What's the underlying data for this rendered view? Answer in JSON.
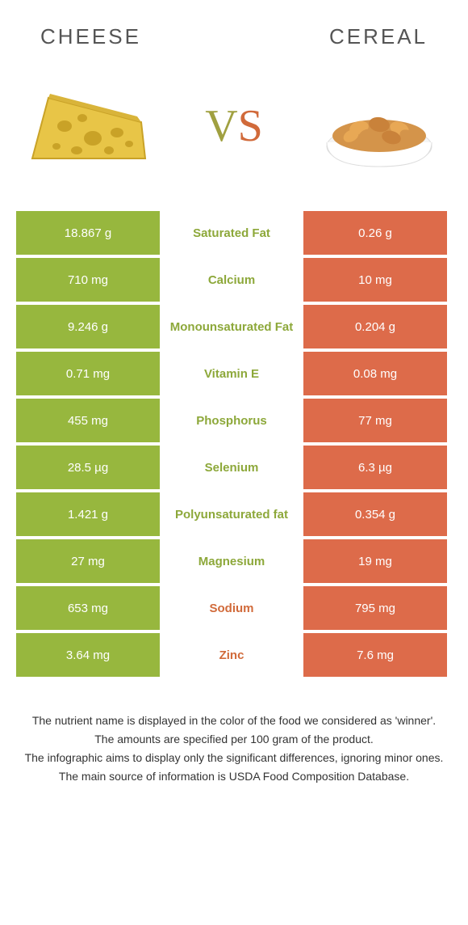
{
  "colors": {
    "left_bg": "#97b73e",
    "right_bg": "#dd6b4a",
    "left_text": "#8da83a",
    "right_text": "#d16a3a"
  },
  "header": {
    "left_title": "CHEESE",
    "right_title": "CEREAL"
  },
  "vs": {
    "v": "V",
    "s": "S"
  },
  "rows": [
    {
      "left": "18.867 g",
      "mid": "Saturated Fat",
      "right": "0.26 g",
      "winner": "left"
    },
    {
      "left": "710 mg",
      "mid": "Calcium",
      "right": "10 mg",
      "winner": "left"
    },
    {
      "left": "9.246 g",
      "mid": "Monounsaturated Fat",
      "right": "0.204 g",
      "winner": "left"
    },
    {
      "left": "0.71 mg",
      "mid": "Vitamin E",
      "right": "0.08 mg",
      "winner": "left"
    },
    {
      "left": "455 mg",
      "mid": "Phosphorus",
      "right": "77 mg",
      "winner": "left"
    },
    {
      "left": "28.5 µg",
      "mid": "Selenium",
      "right": "6.3 µg",
      "winner": "left"
    },
    {
      "left": "1.421 g",
      "mid": "Polyunsaturated fat",
      "right": "0.354 g",
      "winner": "left"
    },
    {
      "left": "27 mg",
      "mid": "Magnesium",
      "right": "19 mg",
      "winner": "left"
    },
    {
      "left": "653 mg",
      "mid": "Sodium",
      "right": "795 mg",
      "winner": "right"
    },
    {
      "left": "3.64 mg",
      "mid": "Zinc",
      "right": "7.6 mg",
      "winner": "right"
    }
  ],
  "footnotes": {
    "line1": "The nutrient name is displayed in the color of the food we considered as 'winner'.",
    "line2": "The amounts are specified per 100 gram of the product.",
    "line3": "The infographic aims to display only the significant differences, ignoring minor ones.",
    "line4": "The main source of information is USDA Food Composition Database."
  }
}
